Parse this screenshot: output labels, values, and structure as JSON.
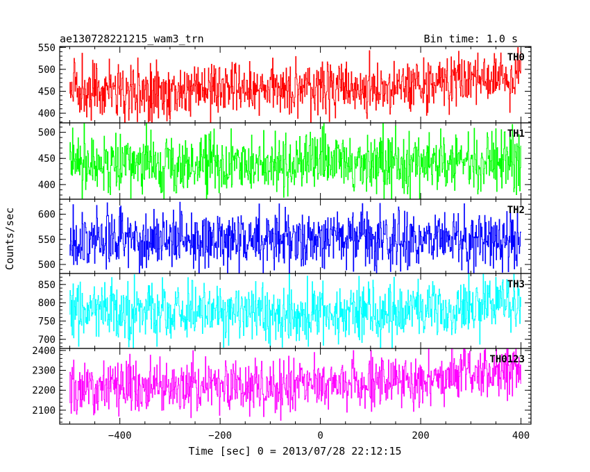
{
  "chart_data": {
    "type": "line",
    "title": "ae130728221215_wam3_trn",
    "bin_time_label": "Bin time: 1.0 s",
    "xlabel": "Time [sec] 0 = 2013/07/28 22:12:15",
    "ylabel": "Counts/sec",
    "xlim": [
      -520,
      420
    ],
    "x_range": [
      -500,
      400
    ],
    "bin_time": 1.0,
    "x_ticks": [
      -400,
      -200,
      0,
      200,
      400
    ],
    "x_tick_labels": [
      "−400",
      "−200",
      "0",
      "200",
      "400"
    ],
    "grid": false,
    "panels": [
      {
        "name": "TH0",
        "color": "#ff0000",
        "ylim": [
          378,
          552
        ],
        "y_ticks": [
          400,
          450,
          500,
          550
        ],
        "trend": [
          [
            -500,
            450
          ],
          [
            -200,
            450
          ],
          [
            0,
            460
          ],
          [
            100,
            458
          ],
          [
            200,
            465
          ],
          [
            300,
            478
          ],
          [
            400,
            480
          ]
        ],
        "scatter": 32
      },
      {
        "name": "TH1",
        "color": "#00ff00",
        "ylim": [
          372,
          518
        ],
        "y_ticks": [
          400,
          450,
          500
        ],
        "trend": [
          [
            -500,
            445
          ],
          [
            -300,
            438
          ],
          [
            -100,
            443
          ],
          [
            100,
            445
          ],
          [
            300,
            445
          ],
          [
            400,
            448
          ]
        ],
        "scatter": 30
      },
      {
        "name": "TH2",
        "color": "#0000ff",
        "ylim": [
          482,
          630
        ],
        "y_ticks": [
          500,
          550,
          600
        ],
        "trend": [
          [
            -500,
            550
          ],
          [
            -200,
            548
          ],
          [
            0,
            548
          ],
          [
            200,
            550
          ],
          [
            400,
            548
          ]
        ],
        "scatter": 30
      },
      {
        "name": "TH3",
        "color": "#00ffff",
        "ylim": [
          675,
          880
        ],
        "y_ticks": [
          700,
          750,
          800,
          850
        ],
        "trend": [
          [
            -500,
            778
          ],
          [
            -200,
            775
          ],
          [
            0,
            768
          ],
          [
            200,
            780
          ],
          [
            300,
            785
          ],
          [
            400,
            805
          ]
        ],
        "scatter": 40
      },
      {
        "name": "TH0123",
        "color": "#ff00ff",
        "ylim": [
          2030,
          2410
        ],
        "y_ticks": [
          2100,
          2200,
          2300,
          2400
        ],
        "trend": [
          [
            -500,
            2215
          ],
          [
            -200,
            2218
          ],
          [
            0,
            2228
          ],
          [
            100,
            2235
          ],
          [
            200,
            2250
          ],
          [
            300,
            2290
          ],
          [
            400,
            2300
          ]
        ],
        "scatter": 65
      }
    ]
  }
}
